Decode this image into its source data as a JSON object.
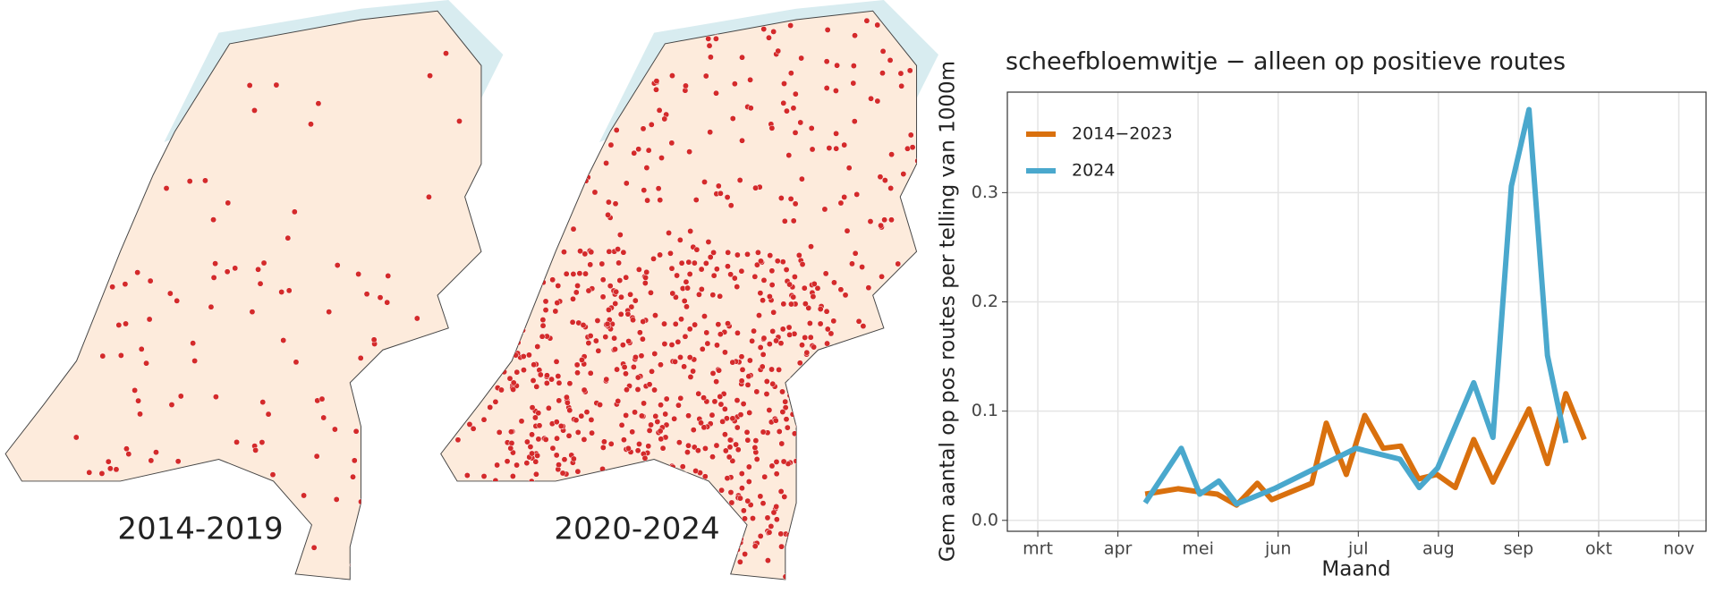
{
  "maps": [
    {
      "label": "2014-2019"
    },
    {
      "label": "2020-2024"
    }
  ],
  "chart_data": {
    "type": "line",
    "title": "scheefbloemwitje − alleen op positieve routes",
    "x_label": "Maand",
    "y_label": "Gem aantal op pos routes per telling van 1000m",
    "xlim": [
      2.62,
      11.34
    ],
    "xticks": [
      {
        "value": 3,
        "label": "mrt"
      },
      {
        "value": 4,
        "label": "apr"
      },
      {
        "value": 5,
        "label": "mei"
      },
      {
        "value": 6,
        "label": "jun"
      },
      {
        "value": 7,
        "label": "jul"
      },
      {
        "value": 8,
        "label": "aug"
      },
      {
        "value": 9,
        "label": "sep"
      },
      {
        "value": 10,
        "label": "okt"
      },
      {
        "value": 11,
        "label": "nov"
      }
    ],
    "ylim": [
      -0.01,
      0.392
    ],
    "yticks": [
      {
        "value": 0,
        "label": "0.0"
      },
      0.1,
      0.2,
      0.3
    ],
    "grid": true,
    "legend": "top-left",
    "series": [
      {
        "name": "2014−2023",
        "color": "#d9700e",
        "x": [
          4.34,
          4.75,
          5.02,
          5.24,
          5.48,
          5.74,
          5.92,
          6.42,
          6.6,
          6.85,
          7.08,
          7.31,
          7.53,
          7.75,
          7.98,
          8.21,
          8.44,
          8.68,
          9.13,
          9.36,
          9.59,
          9.82
        ],
        "values": [
          0.024,
          0.029,
          0.026,
          0.024,
          0.014,
          0.034,
          0.019,
          0.034,
          0.089,
          0.042,
          0.096,
          0.066,
          0.068,
          0.038,
          0.042,
          0.03,
          0.074,
          0.035,
          0.102,
          0.052,
          0.116,
          0.074
        ]
      },
      {
        "name": "2024",
        "color": "#4aa8cd",
        "x": [
          4.34,
          4.79,
          5.02,
          5.26,
          5.48,
          5.95,
          6.97,
          7.52,
          7.76,
          7.99,
          8.44,
          8.68,
          8.91,
          9.13,
          9.36,
          9.59
        ],
        "values": [
          0.016,
          0.066,
          0.024,
          0.036,
          0.015,
          0.029,
          0.066,
          0.056,
          0.03,
          0.048,
          0.126,
          0.076,
          0.306,
          0.376,
          0.151,
          0.071
        ]
      }
    ]
  }
}
